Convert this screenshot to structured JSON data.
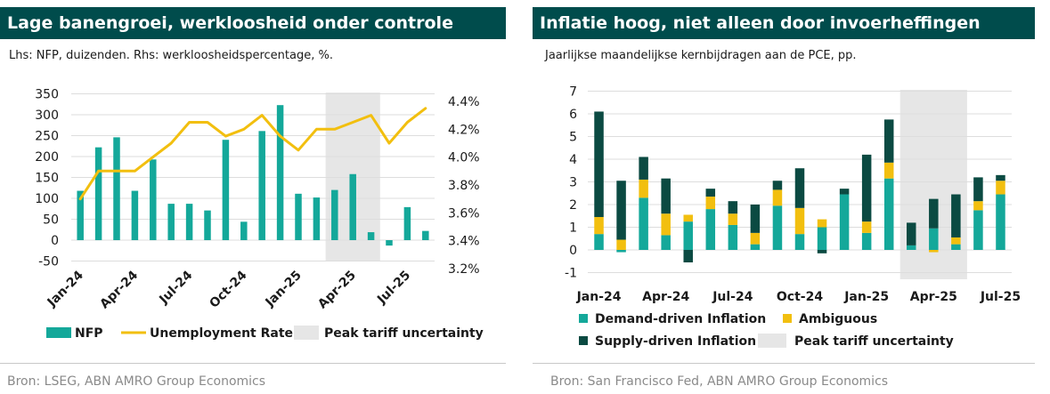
{
  "colors": {
    "title_bg": "#004c4c",
    "teal": "#14a89a",
    "yellow": "#f2bf0f",
    "dark": "#0b4a42",
    "shade": "#e6e6e6",
    "grid": "#dddddd",
    "source": "#8a8a8a"
  },
  "left": {
    "title": "Lage banengroei, werkloosheid onder controle",
    "subtitle": "Lhs: NFP, duizenden. Rhs: werkloosheidspercentage, %.",
    "source": "Bron: LSEG, ABN AMRO Group Economics"
  },
  "right": {
    "title": "Inflatie hoog, niet alleen door invoerheffingen",
    "subtitle": "Jaarlijkse maandelijkse kernbijdragen aan de PCE, pp.",
    "source": "Bron: San Francisco Fed, ABN AMRO Group Economics"
  },
  "chart_data": [
    {
      "type": "bar",
      "categories": [
        "Jan-24",
        "Feb-24",
        "Mar-24",
        "Apr-24",
        "May-24",
        "Jun-24",
        "Jul-24",
        "Aug-24",
        "Sep-24",
        "Oct-24",
        "Nov-24",
        "Dec-24",
        "Jan-25",
        "Feb-25",
        "Mar-25",
        "Apr-25",
        "May-25",
        "Jun-25",
        "Jul-25",
        "Aug-25"
      ],
      "x_tick_labels": [
        "Jan-24",
        "Apr-24",
        "Jul-24",
        "Oct-24",
        "Jan-25",
        "Apr-25",
        "Jul-25"
      ],
      "series": [
        {
          "name": "NFP",
          "type": "bar",
          "axis": "left",
          "values": [
            118,
            222,
            246,
            118,
            193,
            87,
            87,
            71,
            240,
            44,
            261,
            323,
            111,
            102,
            120,
            158,
            19,
            -13,
            79,
            22
          ]
        },
        {
          "name": "Unemployment Rate",
          "type": "line",
          "axis": "right",
          "values": [
            3.7,
            3.9,
            3.9,
            3.9,
            4.0,
            4.1,
            4.25,
            4.25,
            4.15,
            4.2,
            4.3,
            4.15,
            4.05,
            4.2,
            4.2,
            4.25,
            4.3,
            4.1,
            4.25,
            4.35
          ]
        }
      ],
      "shaded_region": {
        "name": "Peak tariff uncertainty",
        "from": "Mar-25",
        "to": "May-25"
      },
      "ylim_left": [
        -50,
        350
      ],
      "yticks_left": [
        "350",
        "300",
        "250",
        "200",
        "150",
        "100",
        "50",
        "0",
        "-50"
      ],
      "ylim_right": [
        3.2,
        4.4
      ],
      "yticks_right": [
        "4.4%",
        "4.2%",
        "4.0%",
        "3.8%",
        "3.6%",
        "3.4%",
        "3.2%"
      ],
      "legend": [
        "NFP",
        "Unemployment Rate",
        "Peak tariff uncertainty"
      ],
      "legend_position": "bottom",
      "grid": true
    },
    {
      "type": "bar",
      "stacked": true,
      "categories": [
        "Jan-24",
        "Feb-24",
        "Mar-24",
        "Apr-24",
        "May-24",
        "Jun-24",
        "Jul-24",
        "Aug-24",
        "Sep-24",
        "Oct-24",
        "Nov-24",
        "Dec-24",
        "Jan-25",
        "Feb-25",
        "Mar-25",
        "Apr-25",
        "May-25",
        "Jun-25",
        "Jul-25"
      ],
      "x_tick_labels": [
        "Jan-24",
        "Apr-24",
        "Jul-24",
        "Oct-24",
        "Jan-25",
        "Apr-25",
        "Jul-25"
      ],
      "series": [
        {
          "name": "Demand-driven Inflation",
          "values": [
            0.7,
            -0.1,
            2.3,
            0.65,
            1.25,
            1.8,
            1.1,
            0.25,
            1.95,
            0.7,
            1.0,
            2.45,
            0.75,
            3.15,
            0.2,
            0.95,
            0.25,
            1.75,
            2.45
          ]
        },
        {
          "name": "Ambiguous",
          "values": [
            0.75,
            0.45,
            0.8,
            0.95,
            0.3,
            0.55,
            0.5,
            0.5,
            0.7,
            1.15,
            0.35,
            0.0,
            0.5,
            0.7,
            0.0,
            -0.1,
            0.3,
            0.4,
            0.6
          ]
        },
        {
          "name": "Supply-driven Inflation",
          "values": [
            4.65,
            2.6,
            1.0,
            1.55,
            -0.55,
            0.35,
            0.55,
            1.25,
            0.4,
            1.75,
            -0.15,
            0.25,
            2.95,
            1.9,
            1.0,
            1.3,
            1.9,
            1.05,
            0.25
          ]
        }
      ],
      "shaded_region": {
        "name": "Peak tariff uncertainty",
        "from": "Mar-25",
        "to": "May-25"
      },
      "ylim": [
        -1,
        7
      ],
      "yticks": [
        "7",
        "6",
        "5",
        "4",
        "3",
        "2",
        "1",
        "0",
        "-1"
      ],
      "legend": [
        "Demand-driven Inflation",
        "Ambiguous",
        "Supply-driven Inflation",
        "Peak tariff uncertainty"
      ],
      "legend_position": "bottom",
      "grid": true
    }
  ]
}
